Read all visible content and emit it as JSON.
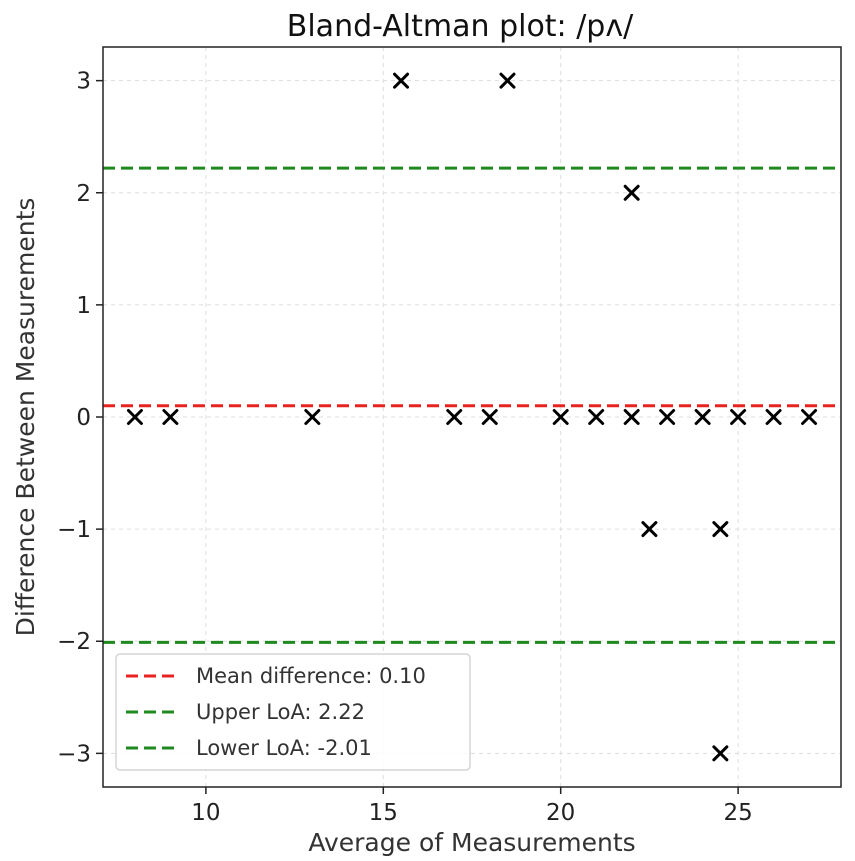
{
  "chart_data": {
    "type": "scatter",
    "title": "Bland-Altman plot: /pʌ/",
    "xlabel": "Average of Measurements",
    "ylabel": "Difference Between Measurements",
    "xlim": [
      7.1,
      27.9
    ],
    "ylim": [
      -3.3,
      3.3
    ],
    "xticks": [
      10,
      15,
      20,
      25
    ],
    "yticks": [
      -3,
      -2,
      -1,
      0,
      1,
      2,
      3
    ],
    "xtick_labels": [
      "10",
      "15",
      "20",
      "25"
    ],
    "ytick_labels": [
      "−3",
      "−2",
      "−1",
      "0",
      "1",
      "2",
      "3"
    ],
    "grid": true,
    "legend_position": "bottom-left",
    "marker": "x",
    "marker_color": "#000000",
    "points": [
      {
        "x": 8,
        "y": 0
      },
      {
        "x": 9,
        "y": 0
      },
      {
        "x": 13,
        "y": 0
      },
      {
        "x": 15.5,
        "y": 3
      },
      {
        "x": 17,
        "y": 0
      },
      {
        "x": 18,
        "y": 0
      },
      {
        "x": 18.5,
        "y": 3
      },
      {
        "x": 20,
        "y": 0
      },
      {
        "x": 21,
        "y": 0
      },
      {
        "x": 22,
        "y": 2
      },
      {
        "x": 22,
        "y": 0
      },
      {
        "x": 22.5,
        "y": -1
      },
      {
        "x": 23,
        "y": 0
      },
      {
        "x": 24,
        "y": 0
      },
      {
        "x": 24.5,
        "y": -1
      },
      {
        "x": 24.5,
        "y": -3
      },
      {
        "x": 25,
        "y": 0
      },
      {
        "x": 26,
        "y": 0
      },
      {
        "x": 27,
        "y": 0
      }
    ],
    "reference_lines": [
      {
        "name": "Mean difference: 0.10",
        "y": 0.1,
        "color": "#e8231f"
      },
      {
        "name": "Upper LoA: 2.22",
        "y": 2.22,
        "color": "#1f8a1f"
      },
      {
        "name": "Lower LoA: -2.01",
        "y": -2.01,
        "color": "#1f8a1f"
      }
    ]
  }
}
